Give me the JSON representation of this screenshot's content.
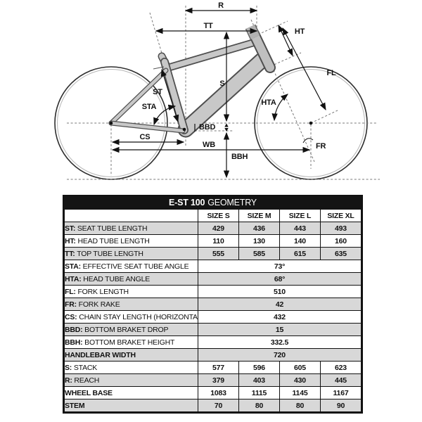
{
  "diagram": {
    "labels": {
      "reach": "R",
      "top_tube": "TT",
      "head_tube": "HT",
      "fork_length": "FL",
      "head_tube_angle": "HTA",
      "seat_tube": "ST",
      "seat_tube_angle": "STA",
      "stack": "S",
      "bottom_bracket_drop": "BBD",
      "chain_stay": "CS",
      "wheel_base": "WB",
      "bottom_bracket_height": "BBH",
      "fork_rake": "FR"
    },
    "colors": {
      "frame_fill": "#c8c8c8",
      "frame_stroke": "#4f4f4f",
      "row_shade": "#d8d8d8",
      "header_bg": "#141414"
    }
  },
  "table": {
    "title_bold": "E-ST 100",
    "title_rest": "GEOMETRY",
    "columns": [
      "SIZE S",
      "SIZE M",
      "SIZE L",
      "SIZE XL"
    ],
    "rows": [
      {
        "abbr": "ST:",
        "label": "SEAT TUBE LENGTH",
        "values": [
          "429",
          "436",
          "443",
          "493"
        ],
        "shaded": true
      },
      {
        "abbr": "HT:",
        "label": "HEAD TUBE LENGTH",
        "values": [
          "110",
          "130",
          "140",
          "160"
        ],
        "shaded": false
      },
      {
        "abbr": "TT:",
        "label": "TOP TUBE LENGTH",
        "values": [
          "555",
          "585",
          "615",
          "635"
        ],
        "shaded": true
      },
      {
        "abbr": "STA:",
        "label": "EFFECTIVE SEAT TUBE ANGLE",
        "values": [
          "73°"
        ],
        "shaded": false
      },
      {
        "abbr": "HTA:",
        "label": "HEAD TUBE ANGLE",
        "values": [
          "68°"
        ],
        "shaded": true
      },
      {
        "abbr": "FL:",
        "label": "FORK LENGTH",
        "values": [
          "510"
        ],
        "shaded": false
      },
      {
        "abbr": "FR:",
        "label": "FORK RAKE",
        "values": [
          "42"
        ],
        "shaded": true
      },
      {
        "abbr": "CS:",
        "label": "CHAIN STAY LENGTH (HORIZONTAL)",
        "values": [
          "432"
        ],
        "shaded": false
      },
      {
        "abbr": "BBD:",
        "label": "BOTTOM BRAKET DROP",
        "values": [
          "15"
        ],
        "shaded": true
      },
      {
        "abbr": "BBH:",
        "label": "BOTTOM BRAKET HEIGHT",
        "values": [
          "332.5"
        ],
        "shaded": false
      },
      {
        "abbr": "",
        "label": "HANDLEBAR WIDTH",
        "values": [
          "720"
        ],
        "shaded": true,
        "bold": true
      },
      {
        "abbr": "S:",
        "label": "STACK",
        "values": [
          "577",
          "596",
          "605",
          "623"
        ],
        "shaded": false
      },
      {
        "abbr": "R:",
        "label": "REACH",
        "values": [
          "379",
          "403",
          "430",
          "445"
        ],
        "shaded": true
      },
      {
        "abbr": "",
        "label": "WHEEL BASE",
        "values": [
          "1083",
          "1115",
          "1145",
          "1167"
        ],
        "shaded": false,
        "bold": true
      },
      {
        "abbr": "",
        "label": "STEM",
        "values": [
          "70",
          "80",
          "80",
          "90"
        ],
        "shaded": true,
        "bold": true
      }
    ]
  }
}
